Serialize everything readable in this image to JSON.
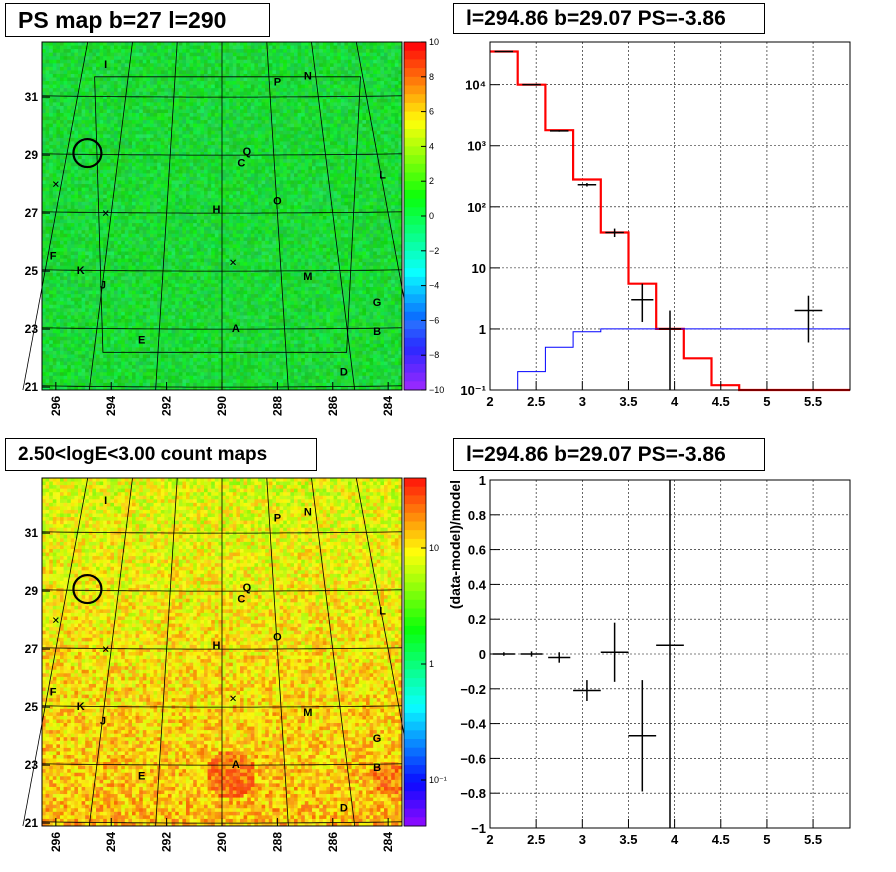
{
  "panels": {
    "tl_title": "PS map b=27 l=290",
    "tr_title": "l=294.86 b=29.07 PS=-3.86",
    "bl_title": "2.50<logE<3.00 count maps",
    "br_title": "l=294.86 b=29.07 PS=-3.86"
  },
  "map_labels": [
    {
      "text": "I",
      "l": 294.2,
      "b": 32.0
    },
    {
      "text": "P",
      "l": 288.0,
      "b": 31.4
    },
    {
      "text": "N",
      "l": 286.9,
      "b": 31.6
    },
    {
      "text": "Q",
      "l": 289.1,
      "b": 29.0
    },
    {
      "text": "C",
      "l": 289.3,
      "b": 28.6
    },
    {
      "text": "L",
      "l": 284.2,
      "b": 28.2
    },
    {
      "text": "O",
      "l": 288.0,
      "b": 27.3
    },
    {
      "text": "H",
      "l": 290.2,
      "b": 27.0
    },
    {
      "text": "F",
      "l": 296.1,
      "b": 25.4
    },
    {
      "text": "K",
      "l": 295.1,
      "b": 24.9
    },
    {
      "text": "J",
      "l": 294.3,
      "b": 24.4
    },
    {
      "text": "M",
      "l": 286.9,
      "b": 24.7
    },
    {
      "text": "G",
      "l": 284.4,
      "b": 23.8
    },
    {
      "text": "A",
      "l": 289.5,
      "b": 22.9
    },
    {
      "text": "B",
      "l": 284.4,
      "b": 22.8
    },
    {
      "text": "E",
      "l": 292.9,
      "b": 22.5
    },
    {
      "text": "D",
      "l": 285.6,
      "b": 21.4
    }
  ],
  "map_crosses": [
    {
      "l": 296.0,
      "b": 28.0
    },
    {
      "l": 294.2,
      "b": 27.0
    },
    {
      "l": 289.6,
      "b": 25.3
    }
  ],
  "map_circle": {
    "l": 294.86,
    "b": 29.07
  },
  "map_axes": {
    "x_ticks": [
      "296",
      "294",
      "292",
      "290",
      "288",
      "286",
      "284"
    ],
    "y_ticks": [
      "21",
      "23",
      "25",
      "27",
      "29",
      "31"
    ]
  },
  "tl_colorbar_ticks": [
    "10",
    "8",
    "6",
    "4",
    "2",
    "0",
    "−2",
    "−4",
    "−6",
    "−8",
    "−10"
  ],
  "bl_colorbar_ticks": [
    "10",
    "1",
    "10⁻¹"
  ],
  "chart_data": [
    {
      "type": "step",
      "panel": "top-right spectrum",
      "ylog": true,
      "xlim": [
        2,
        5.9
      ],
      "ylim": [
        0.1,
        50000
      ],
      "x_ticks": [
        "2",
        "2.5",
        "3",
        "3.5",
        "4",
        "4.5",
        "5",
        "5.5"
      ],
      "y_ticks": [
        "10⁻¹",
        "1",
        "10",
        "10²",
        "10³",
        "10⁴"
      ],
      "bin_edges": [
        2.0,
        2.3,
        2.6,
        2.9,
        3.2,
        3.5,
        3.8,
        4.1,
        4.4,
        4.7,
        5.0,
        5.3,
        5.6,
        5.9
      ],
      "series": [
        {
          "color": "#ff0000",
          "values": [
            35000,
            10000,
            1800,
            280,
            38,
            5.5,
            1.0,
            0.33,
            0.12,
            0.1,
            0.1,
            0.1,
            0.1
          ]
        },
        {
          "color": "#0000ff",
          "values": [
            0.05,
            0.2,
            0.5,
            0.9,
            1.0,
            1.0,
            1.0,
            1.0,
            1.0,
            1.0,
            1.0,
            1.0,
            1.0
          ]
        }
      ],
      "data_points": [
        {
          "x": 2.15,
          "y": 35000,
          "xerr": 0.1,
          "ylo": 34600,
          "yhi": 35400
        },
        {
          "x": 2.45,
          "y": 10000,
          "xerr": 0.1,
          "ylo": 9800,
          "yhi": 10200
        },
        {
          "x": 2.75,
          "y": 1750,
          "xerr": 0.1,
          "ylo": 1700,
          "yhi": 1800
        },
        {
          "x": 3.05,
          "y": 230,
          "xerr": 0.1,
          "ylo": 215,
          "yhi": 245
        },
        {
          "x": 3.35,
          "y": 38,
          "xerr": 0.1,
          "ylo": 32,
          "yhi": 44
        },
        {
          "x": 3.65,
          "y": 3.0,
          "xerr": 0.12,
          "ylo": 1.3,
          "yhi": 5.5
        },
        {
          "x": 3.95,
          "y": 1.0,
          "xerr": 0.12,
          "ylo": 0.1,
          "yhi": 2.0
        },
        {
          "x": 5.45,
          "y": 2.0,
          "xerr": 0.15,
          "ylo": 0.6,
          "yhi": 3.5
        }
      ]
    },
    {
      "type": "scatter",
      "panel": "bottom-right residuals",
      "ylabel": "(data-model)/model",
      "xlim": [
        2,
        5.9
      ],
      "ylim": [
        -1,
        1
      ],
      "x_ticks": [
        "2",
        "2.5",
        "3",
        "3.5",
        "4",
        "4.5",
        "5",
        "5.5"
      ],
      "y_ticks": [
        "−1",
        "−0.8",
        "−0.6",
        "−0.4",
        "−0.2",
        "0",
        "0.2",
        "0.4",
        "0.6",
        "0.8",
        "1"
      ],
      "data_points": [
        {
          "x": 2.15,
          "y": 0.0,
          "xerr": 0.12,
          "ylo": -0.01,
          "yhi": 0.01
        },
        {
          "x": 2.45,
          "y": 0.0,
          "xerr": 0.12,
          "ylo": -0.015,
          "yhi": 0.015
        },
        {
          "x": 2.75,
          "y": -0.02,
          "xerr": 0.12,
          "ylo": -0.05,
          "yhi": 0.01
        },
        {
          "x": 3.05,
          "y": -0.21,
          "xerr": 0.15,
          "ylo": -0.27,
          "yhi": -0.15
        },
        {
          "x": 3.35,
          "y": 0.01,
          "xerr": 0.15,
          "ylo": -0.16,
          "yhi": 0.18
        },
        {
          "x": 3.65,
          "y": -0.47,
          "xerr": 0.15,
          "ylo": -0.79,
          "yhi": -0.15
        },
        {
          "x": 3.95,
          "y": 0.05,
          "xerr": 0.15,
          "ylo": -1.0,
          "yhi": 1.0
        }
      ]
    }
  ]
}
